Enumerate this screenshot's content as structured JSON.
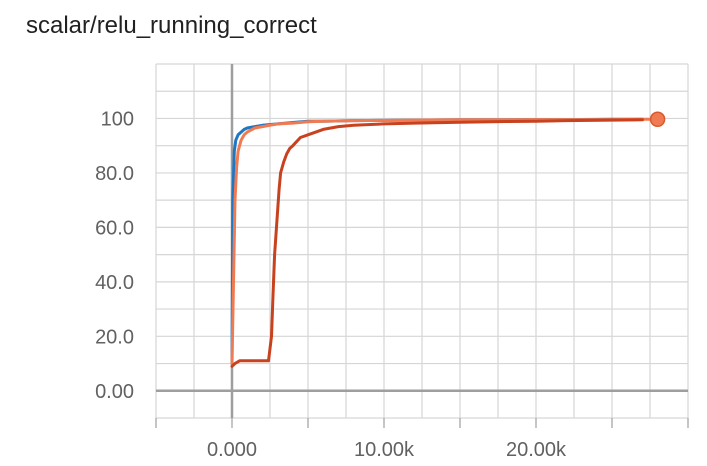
{
  "chart_data": {
    "type": "line",
    "title": "scalar/relu_running_correct",
    "xlabel": "",
    "ylabel": "",
    "xlim": [
      -5000,
      30000
    ],
    "ylim": [
      -10,
      120
    ],
    "x_tick_values": [
      0,
      10000,
      20000
    ],
    "x_tick_labels": [
      "0.000",
      "10.00k",
      "20.00k"
    ],
    "y_tick_values": [
      0,
      20,
      40,
      60,
      80,
      100
    ],
    "y_tick_labels": [
      "0.00",
      "20.0",
      "40.0",
      "60.0",
      "80.0",
      "100"
    ],
    "grid": true,
    "legend": false,
    "series": [
      {
        "color": "#1f77c4",
        "x": [
          0,
          50,
          150,
          250,
          400,
          600,
          800,
          1000,
          1500,
          2000,
          3000,
          4000,
          5000,
          6000,
          8000,
          10000,
          12000,
          15000,
          18000,
          20000,
          22000,
          25000,
          27000
        ],
        "y": [
          10,
          70,
          88,
          92,
          94,
          95,
          96,
          96.5,
          97,
          97.5,
          98,
          98.5,
          99,
          99,
          99.2,
          99.3,
          99.4,
          99.5,
          99.5,
          99.6,
          99.6,
          99.7,
          99.7
        ]
      },
      {
        "color": "#f07b52",
        "x": [
          0,
          100,
          200,
          300,
          400,
          600,
          800,
          1000,
          1500,
          2000,
          3000,
          4000,
          5000,
          6000,
          8000,
          10000,
          12000,
          15000,
          18000,
          20000,
          22000,
          25000,
          27000,
          28000
        ],
        "y": [
          10,
          40,
          70,
          82,
          88,
          92,
          94,
          95,
          96.5,
          97,
          98,
          98.3,
          98.8,
          99,
          99.2,
          99.3,
          99.4,
          99.5,
          99.5,
          99.6,
          99.6,
          99.6,
          99.7,
          99.7
        ]
      },
      {
        "color": "#c8421f",
        "x": [
          0,
          200,
          500,
          1000,
          1500,
          2000,
          2400,
          2600,
          2700,
          2800,
          2900,
          3000,
          3100,
          3200,
          3400,
          3600,
          3800,
          4000,
          4500,
          5000,
          6000,
          7000,
          8000,
          10000,
          12000,
          15000,
          18000,
          20000,
          22000,
          25000,
          27000
        ],
        "y": [
          9,
          10,
          11,
          11,
          11,
          11,
          11,
          20,
          35,
          50,
          58,
          66,
          74,
          80,
          84,
          87,
          89,
          90,
          93,
          94,
          96,
          97,
          97.5,
          98,
          98.3,
          98.6,
          98.9,
          99,
          99.2,
          99.4,
          99.5
        ]
      }
    ],
    "end_marker": {
      "x": 28000,
      "y": 99.7,
      "color": "#f07b52"
    }
  }
}
